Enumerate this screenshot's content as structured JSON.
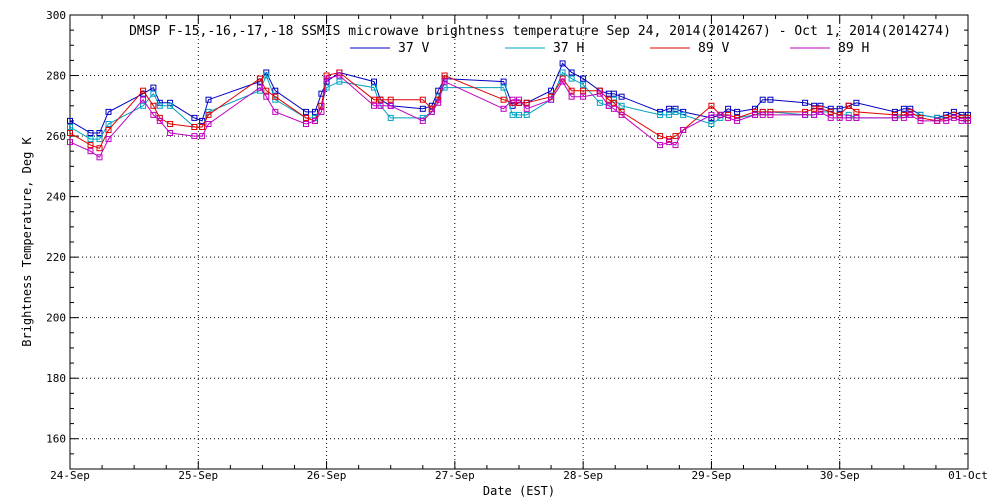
{
  "chart_data": {
    "type": "line",
    "title": "DMSP F-15,-16,-17,-18 SSMIS microwave brightness temperature Sep 24, 2014(2014267) - Oct  1, 2014(2014274)",
    "xlabel": "Date (EST)",
    "ylabel": "Brightness Temperature, Deg K",
    "xlim": [
      0,
      7
    ],
    "ylim": [
      150,
      300
    ],
    "x_tick_labels": [
      "24-Sep",
      "25-Sep",
      "26-Sep",
      "27-Sep",
      "28-Sep",
      "29-Sep",
      "30-Sep",
      "01-Oct"
    ],
    "y_ticks": [
      160,
      180,
      200,
      220,
      240,
      260,
      280,
      300
    ],
    "grid": true,
    "legend_position": "top-center",
    "x_days": [
      0.0,
      0.16,
      0.23,
      0.3,
      0.57,
      0.65,
      0.7,
      0.78,
      0.97,
      1.03,
      1.08,
      1.48,
      1.53,
      1.6,
      1.84,
      1.91,
      1.96,
      2.0,
      2.1,
      2.37,
      2.42,
      2.5,
      2.75,
      2.82,
      2.87,
      2.92,
      3.38,
      3.45,
      3.5,
      3.56,
      3.75,
      3.84,
      3.91,
      4.0,
      4.13,
      4.2,
      4.24,
      4.3,
      4.6,
      4.67,
      4.72,
      4.78,
      5.0,
      5.07,
      5.13,
      5.2,
      5.34,
      5.4,
      5.46,
      5.73,
      5.8,
      5.85,
      5.93,
      6.0,
      6.07,
      6.13,
      6.43,
      6.5,
      6.55,
      6.63,
      6.76,
      6.83,
      6.89,
      6.95,
      7.0
    ],
    "series": [
      {
        "name": "37 V",
        "color": "#0000c0",
        "values": [
          265,
          261,
          261,
          268,
          274,
          276,
          271,
          271,
          266,
          265,
          272,
          278,
          281,
          275,
          268,
          268,
          274,
          278,
          281,
          278,
          272,
          270,
          269,
          270,
          275,
          279,
          278,
          270,
          271,
          271,
          275,
          284,
          281,
          279,
          275,
          274,
          274,
          273,
          268,
          269,
          269,
          268,
          266,
          267,
          269,
          268,
          269,
          272,
          272,
          271,
          270,
          270,
          269,
          269,
          270,
          271,
          268,
          269,
          269,
          267,
          266,
          267,
          268,
          267,
          267
        ]
      },
      {
        "name": "37 H",
        "color": "#00a0c0",
        "values": [
          263,
          259,
          259,
          264,
          270,
          274,
          270,
          270,
          263,
          263,
          268,
          275,
          280,
          272,
          266,
          266,
          270,
          276,
          278,
          276,
          270,
          266,
          266,
          268,
          273,
          276,
          276,
          267,
          267,
          267,
          272,
          281,
          279,
          277,
          271,
          270,
          272,
          270,
          267,
          267,
          268,
          267,
          264,
          266,
          267,
          266,
          267,
          268,
          268,
          267,
          267,
          268,
          268,
          267,
          267,
          266,
          266,
          267,
          267,
          267,
          266,
          266,
          267,
          266,
          266
        ]
      },
      {
        "name": "89 V",
        "color": "#e00000",
        "values": [
          261,
          257,
          256,
          262,
          275,
          270,
          266,
          264,
          263,
          263,
          267,
          279,
          275,
          273,
          266,
          265,
          270,
          280,
          281,
          272,
          272,
          272,
          272,
          269,
          272,
          280,
          272,
          271,
          271,
          271,
          273,
          279,
          275,
          275,
          275,
          272,
          271,
          268,
          260,
          259,
          260,
          262,
          270,
          267,
          267,
          266,
          268,
          268,
          268,
          268,
          269,
          269,
          268,
          267,
          270,
          268,
          267,
          267,
          268,
          266,
          265,
          266,
          267,
          266,
          266
        ]
      },
      {
        "name": "89 H",
        "color": "#c000c0",
        "values": [
          258,
          255,
          253,
          259,
          272,
          267,
          265,
          261,
          260,
          260,
          264,
          276,
          273,
          268,
          264,
          265,
          268,
          279,
          280,
          270,
          270,
          270,
          265,
          268,
          271,
          278,
          269,
          272,
          272,
          269,
          272,
          278,
          273,
          273,
          274,
          270,
          269,
          267,
          257,
          258,
          257,
          262,
          267,
          267,
          266,
          265,
          267,
          267,
          267,
          267,
          267,
          268,
          266,
          266,
          266,
          266,
          266,
          266,
          267,
          265,
          265,
          265,
          266,
          265,
          265
        ]
      }
    ]
  }
}
